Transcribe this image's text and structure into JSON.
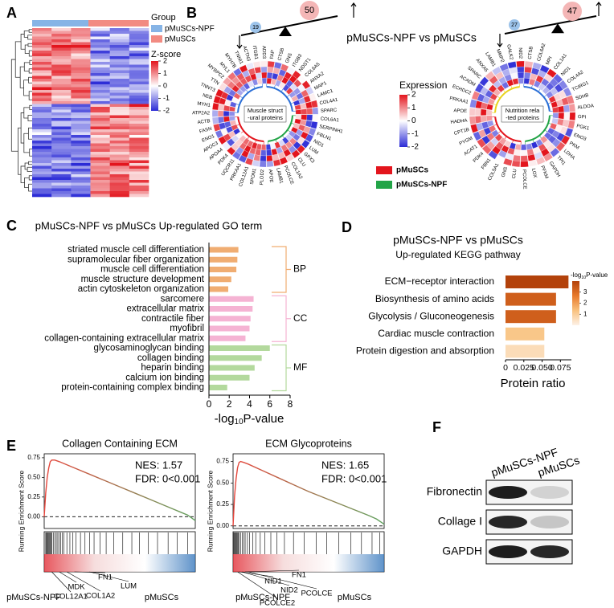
{
  "panels": [
    "A",
    "B",
    "C",
    "D",
    "E",
    "F"
  ],
  "heatmap": {
    "legend_title": "Group",
    "groups": [
      {
        "name": "pMuSCs-NPF",
        "color": "#86b4e6"
      },
      {
        "name": "pMuSCs",
        "color": "#f28b82"
      }
    ],
    "colorbar_title": "Z-score",
    "colorbar_ticks": [
      2,
      1,
      0,
      -1,
      -2
    ]
  },
  "circos": {
    "title": "pMuSCs-NPF vs pMuSCs",
    "panels": [
      {
        "counts": {
          "down": 19,
          "up": 50
        },
        "center_label": [
          "Muscle struct",
          "-ural proteins"
        ],
        "genes": [
          "FAP",
          "CTSB",
          "GNS",
          "ITGB3",
          "NDST1",
          "COL6A5",
          "ANXA2",
          "MAP1",
          "LAMC1",
          "COL4A1",
          "SPARC",
          "COL6A1",
          "SERPINH1",
          "FBLN1",
          "NID1",
          "LUM",
          "GPX3",
          "CLU",
          "COL1A2",
          "PCOLCE",
          "LAMB1",
          "APOE",
          "PLOD2",
          "SPON1",
          "COL12A1",
          "PRKAA1",
          "UQCR11",
          "PDK4",
          "APOA4",
          "APOC3",
          "ENO1",
          "FASN",
          "ACTB",
          "ATP2A2",
          "MYH1",
          "NEB",
          "TNNT3",
          "TTN",
          "MYBPC2",
          "MYL1",
          "MYH7B",
          "TNNI1",
          "ACTN3",
          "ITGB1",
          "ADD3"
        ]
      },
      {
        "counts": {
          "down": 27,
          "up": 47
        },
        "center_label": [
          "Nutrition rela",
          "-ted proteins"
        ],
        "genes": [
          "CTSB",
          "COL6A2",
          "MPI",
          "COL1A1",
          "NID1",
          "COL4A2",
          "TCIRG1",
          "SDHB",
          "ALDOA",
          "GPI",
          "PGK1",
          "ENO3",
          "PKM",
          "LDHA",
          "TPI1",
          "GAPDH",
          "PFKM",
          "LOX",
          "PCOLCE",
          "CLU",
          "GNS",
          "COL5A1",
          "FBN1",
          "PDK4",
          "ACAT1",
          "PYGM",
          "CPT1B",
          "HADHA",
          "APOE",
          "PRKAA1",
          "ECHDC2",
          "ACADM",
          "SPARC",
          "ANXA5",
          "LAMB1",
          "MMP2",
          "GALK2",
          "NID2"
        ]
      }
    ],
    "colorbar_title": "Expression",
    "colorbar_ticks": [
      2,
      1,
      0,
      -1,
      -2
    ],
    "legend": [
      {
        "name": "pMuSCs",
        "color": "#e3151d"
      },
      {
        "name": "pMuSCs-NPF",
        "color": "#22a447"
      }
    ]
  },
  "chart_data": [
    {
      "type": "bar",
      "orientation": "horizontal",
      "title": "pMuSCs-NPF vs pMuSCs Up-regulated GO term",
      "categories": [
        "striated muscle cell differentiation",
        "supramolecular fiber organization",
        "muscle cell differentiation",
        "muscle structure development",
        "actin cytoskeleton organization",
        "sarcomere",
        "extracellular matrix",
        "contractile fiber",
        "myofibril",
        "collagen-containing extracellular matrix",
        "glycosaminoglycan binding",
        "collagen binding",
        "heparin binding",
        "calcium ion binding",
        "protein-containing complex binding"
      ],
      "series": [
        {
          "name": "BP",
          "color": "#f0ad72",
          "values": [
            2.9,
            2.8,
            2.7,
            2.2,
            1.9,
            null,
            null,
            null,
            null,
            null,
            null,
            null,
            null,
            null,
            null
          ]
        },
        {
          "name": "CC",
          "color": "#f5b3d3",
          "values": [
            null,
            null,
            null,
            null,
            null,
            4.4,
            4.3,
            4.1,
            4.0,
            3.6,
            null,
            null,
            null,
            null,
            null
          ]
        },
        {
          "name": "MF",
          "color": "#b3d99d",
          "values": [
            null,
            null,
            null,
            null,
            null,
            null,
            null,
            null,
            null,
            null,
            6.0,
            5.2,
            4.5,
            4.0,
            1.8
          ]
        }
      ],
      "xlim": [
        0,
        8
      ],
      "xticks": [
        0,
        2,
        4,
        6,
        8
      ],
      "x_label": [
        "-log",
        "10",
        "P-value"
      ]
    },
    {
      "type": "bar",
      "orientation": "horizontal",
      "title": "pMuSCs-NPF vs pMuSCs",
      "subtitle": "Up-regulated KEGG pathway",
      "categories": [
        "ECM−receptor interaction",
        "Biosynthesis of amino acids",
        "Glycolysis / Gluconeogenesis",
        "Cardiac muscle contraction",
        "Protein digestion and absorption"
      ],
      "values": [
        0.086,
        0.069,
        0.069,
        0.053,
        0.053
      ],
      "color_values": [
        4.0,
        3.3,
        3.3,
        1.2,
        0.6
      ],
      "colormap": [
        "#fdf1e7",
        "#f9c27f",
        "#e87a2c",
        "#b3420b"
      ],
      "clim": [
        0,
        4
      ],
      "colorbar_ticks": [
        1,
        2,
        3
      ],
      "colorbar_label": [
        "-log",
        "10",
        "P-value"
      ],
      "xlim": [
        0,
        0.09
      ],
      "xticks": [
        0,
        0.025,
        {
          "value": 0.05,
          "label": "0.050"
        },
        0.075
      ],
      "x_label": "Protein ratio"
    },
    {
      "type": "line",
      "title": "Collagen Containing ECM",
      "y_label": "Running Enrichment Score",
      "x": [
        0,
        1,
        2,
        3,
        4,
        5,
        7,
        10,
        20,
        30,
        40,
        50,
        60,
        70,
        80,
        90,
        95,
        100
      ],
      "values": [
        0,
        0.3,
        0.5,
        0.62,
        0.7,
        0.72,
        0.72,
        0.7,
        0.62,
        0.54,
        0.46,
        0.38,
        0.3,
        0.22,
        0.14,
        0.06,
        0.02,
        -0.05
      ],
      "colors": [
        "#e8453c",
        "#5fa35f"
      ],
      "xlim": [
        0,
        100
      ],
      "ylim": [
        -0.15,
        0.8
      ],
      "yticks": [
        {
          "value": 0,
          "label": "0.00"
        },
        {
          "value": 0.25,
          "label": "0.25"
        },
        {
          "value": 0.5,
          "label": "0.50"
        },
        {
          "value": 0.75,
          "label": "0.75"
        }
      ],
      "hits": [
        1,
        1.5,
        2,
        2.5,
        3,
        3.5,
        4,
        4.5,
        5,
        6,
        7,
        8,
        9,
        10,
        11,
        12,
        13,
        15,
        17,
        19,
        21,
        24,
        27,
        30,
        33,
        37,
        41,
        46,
        52,
        58,
        63,
        69,
        75,
        82,
        88,
        95
      ],
      "annotations": [
        "NES: 1.57",
        "FDR: 0<0.001"
      ],
      "genes": [
        "MDK",
        "COL12A1",
        "COL1A2",
        "FN1",
        "LUM"
      ],
      "groups": [
        {
          "name": "pMuSCs-NPF",
          "color": "#e0202a"
        },
        {
          "name": "pMuSCs",
          "color": "#2a6fb8"
        }
      ]
    },
    {
      "type": "line",
      "title": "ECM Glycoproteins",
      "y_label": "Running Enrichment Score",
      "x": [
        0,
        1,
        2,
        3,
        4,
        5,
        7,
        10,
        20,
        30,
        40,
        50,
        60,
        70,
        80,
        90,
        95,
        100
      ],
      "values": [
        0,
        0.35,
        0.55,
        0.68,
        0.74,
        0.75,
        0.74,
        0.72,
        0.64,
        0.56,
        0.48,
        0.4,
        0.33,
        0.26,
        0.19,
        0.12,
        0.08,
        0.02
      ],
      "colors": [
        "#e8453c",
        "#5fa35f"
      ],
      "xlim": [
        0,
        100
      ],
      "ylim": [
        -0.03,
        0.84
      ],
      "yticks": [
        {
          "value": 0,
          "label": "0.00"
        },
        {
          "value": 0.25,
          "label": "0.25"
        },
        {
          "value": 0.5,
          "label": "0.50"
        },
        {
          "value": 0.75,
          "label": "0.75"
        }
      ],
      "hits": [
        0.5,
        1,
        1.5,
        2,
        2.5,
        3,
        3.5,
        4,
        5,
        6,
        7,
        8,
        9.5,
        11,
        13,
        15,
        18,
        21,
        25,
        29,
        34,
        40,
        47,
        55,
        62,
        70,
        78,
        85,
        92,
        97
      ],
      "annotations": [
        "NES: 1.65",
        "FDR: 0<0.001"
      ],
      "genes": [
        "FN1",
        "NID1",
        "NID2",
        "PCOLCE",
        "PCOLCE2"
      ],
      "groups": [
        {
          "name": "pMuSCs-NPF",
          "color": "#e0202a"
        },
        {
          "name": "pMuSCs",
          "color": "#2a6fb8"
        }
      ]
    }
  ],
  "western": {
    "columns": [
      "pMuSCs-NPF",
      "pMuSCs"
    ],
    "rows": [
      "Fibronectin",
      "Collage I",
      "GAPDH"
    ]
  }
}
